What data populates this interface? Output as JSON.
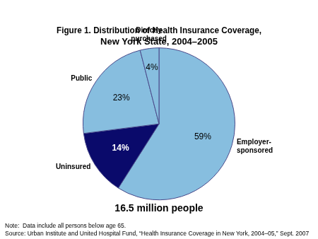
{
  "chart_data": {
    "type": "pie",
    "title": "Figure 1. Distribution of Health Insurance Coverage,\nNew York State, 2004–2005",
    "subtitle": "16.5 million people",
    "categories": [
      "Employer-\nsponsored",
      "Uninsured",
      "Public",
      "Directly\npurchased"
    ],
    "values": [
      59,
      14,
      23,
      4
    ],
    "value_labels": [
      "59%",
      "14%",
      "23%",
      "4%"
    ],
    "colors": [
      "#87BEDF",
      "#0A0A6B",
      "#87BEDF",
      "#87BEDF"
    ],
    "data_labels": true,
    "annotations": [
      "Note:  Data include all persons below age 65.",
      "Source: Urban Institute and United Hospital Fund, “Health Insurance Coverage in New York, 2004–05,” Sept. 2007"
    ]
  }
}
